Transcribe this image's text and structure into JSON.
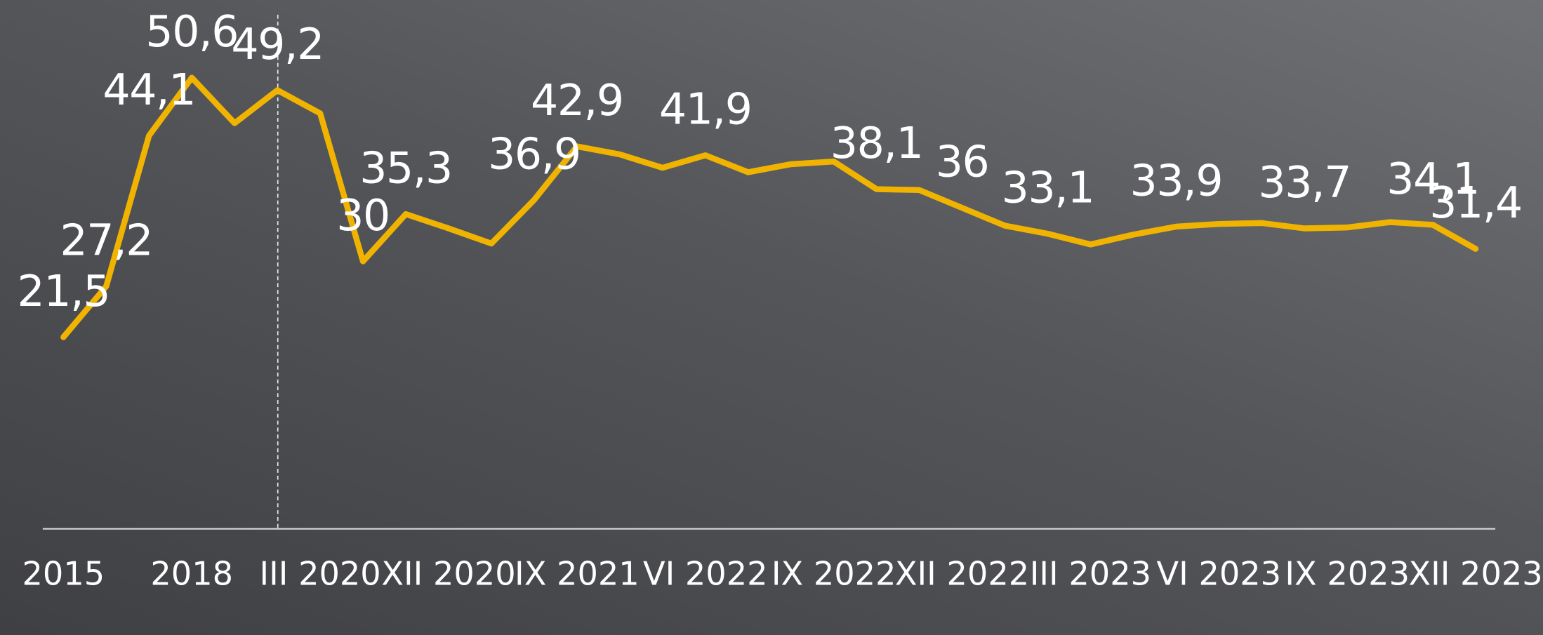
{
  "chart_data": {
    "type": "line",
    "categories": [
      "2015",
      null,
      null,
      "2018",
      null,
      null,
      "III 2020",
      null,
      null,
      "XII 2020",
      null,
      null,
      "IX 2021",
      null,
      null,
      "VI 2022",
      null,
      null,
      "IX 2022",
      null,
      null,
      "XII 2022",
      null,
      null,
      "III 2023",
      null,
      null,
      "VI 2023",
      null,
      null,
      "IX 2023",
      null,
      null,
      "XII 2023"
    ],
    "series": [
      {
        "name": "",
        "color": "#f0b400",
        "values": [
          21.5,
          27.2,
          44.1,
          50.6,
          45.5,
          49.2,
          46.6,
          30,
          35.3,
          33.7,
          32.0,
          36.9,
          42.9,
          42.0,
          40.5,
          41.9,
          40.0,
          40.9,
          41.2,
          38.1,
          38.0,
          36,
          34.0,
          33.1,
          31.9,
          33.0,
          33.9,
          34.2,
          34.3,
          33.7,
          33.8,
          34.4,
          34.1,
          31.4
        ],
        "value_labels": [
          "21,5",
          "27,2",
          "44,1",
          "50,6",
          null,
          "49,2",
          null,
          "30",
          "35,3",
          null,
          null,
          "36,9",
          "42,9",
          null,
          null,
          "41,9",
          null,
          null,
          null,
          "38,1",
          null,
          "36",
          null,
          "33,1",
          null,
          null,
          "33,9",
          null,
          null,
          "33,7",
          null,
          null,
          "34,1",
          "31,4"
        ]
      }
    ],
    "ylim": [
      0,
      60
    ]
  }
}
